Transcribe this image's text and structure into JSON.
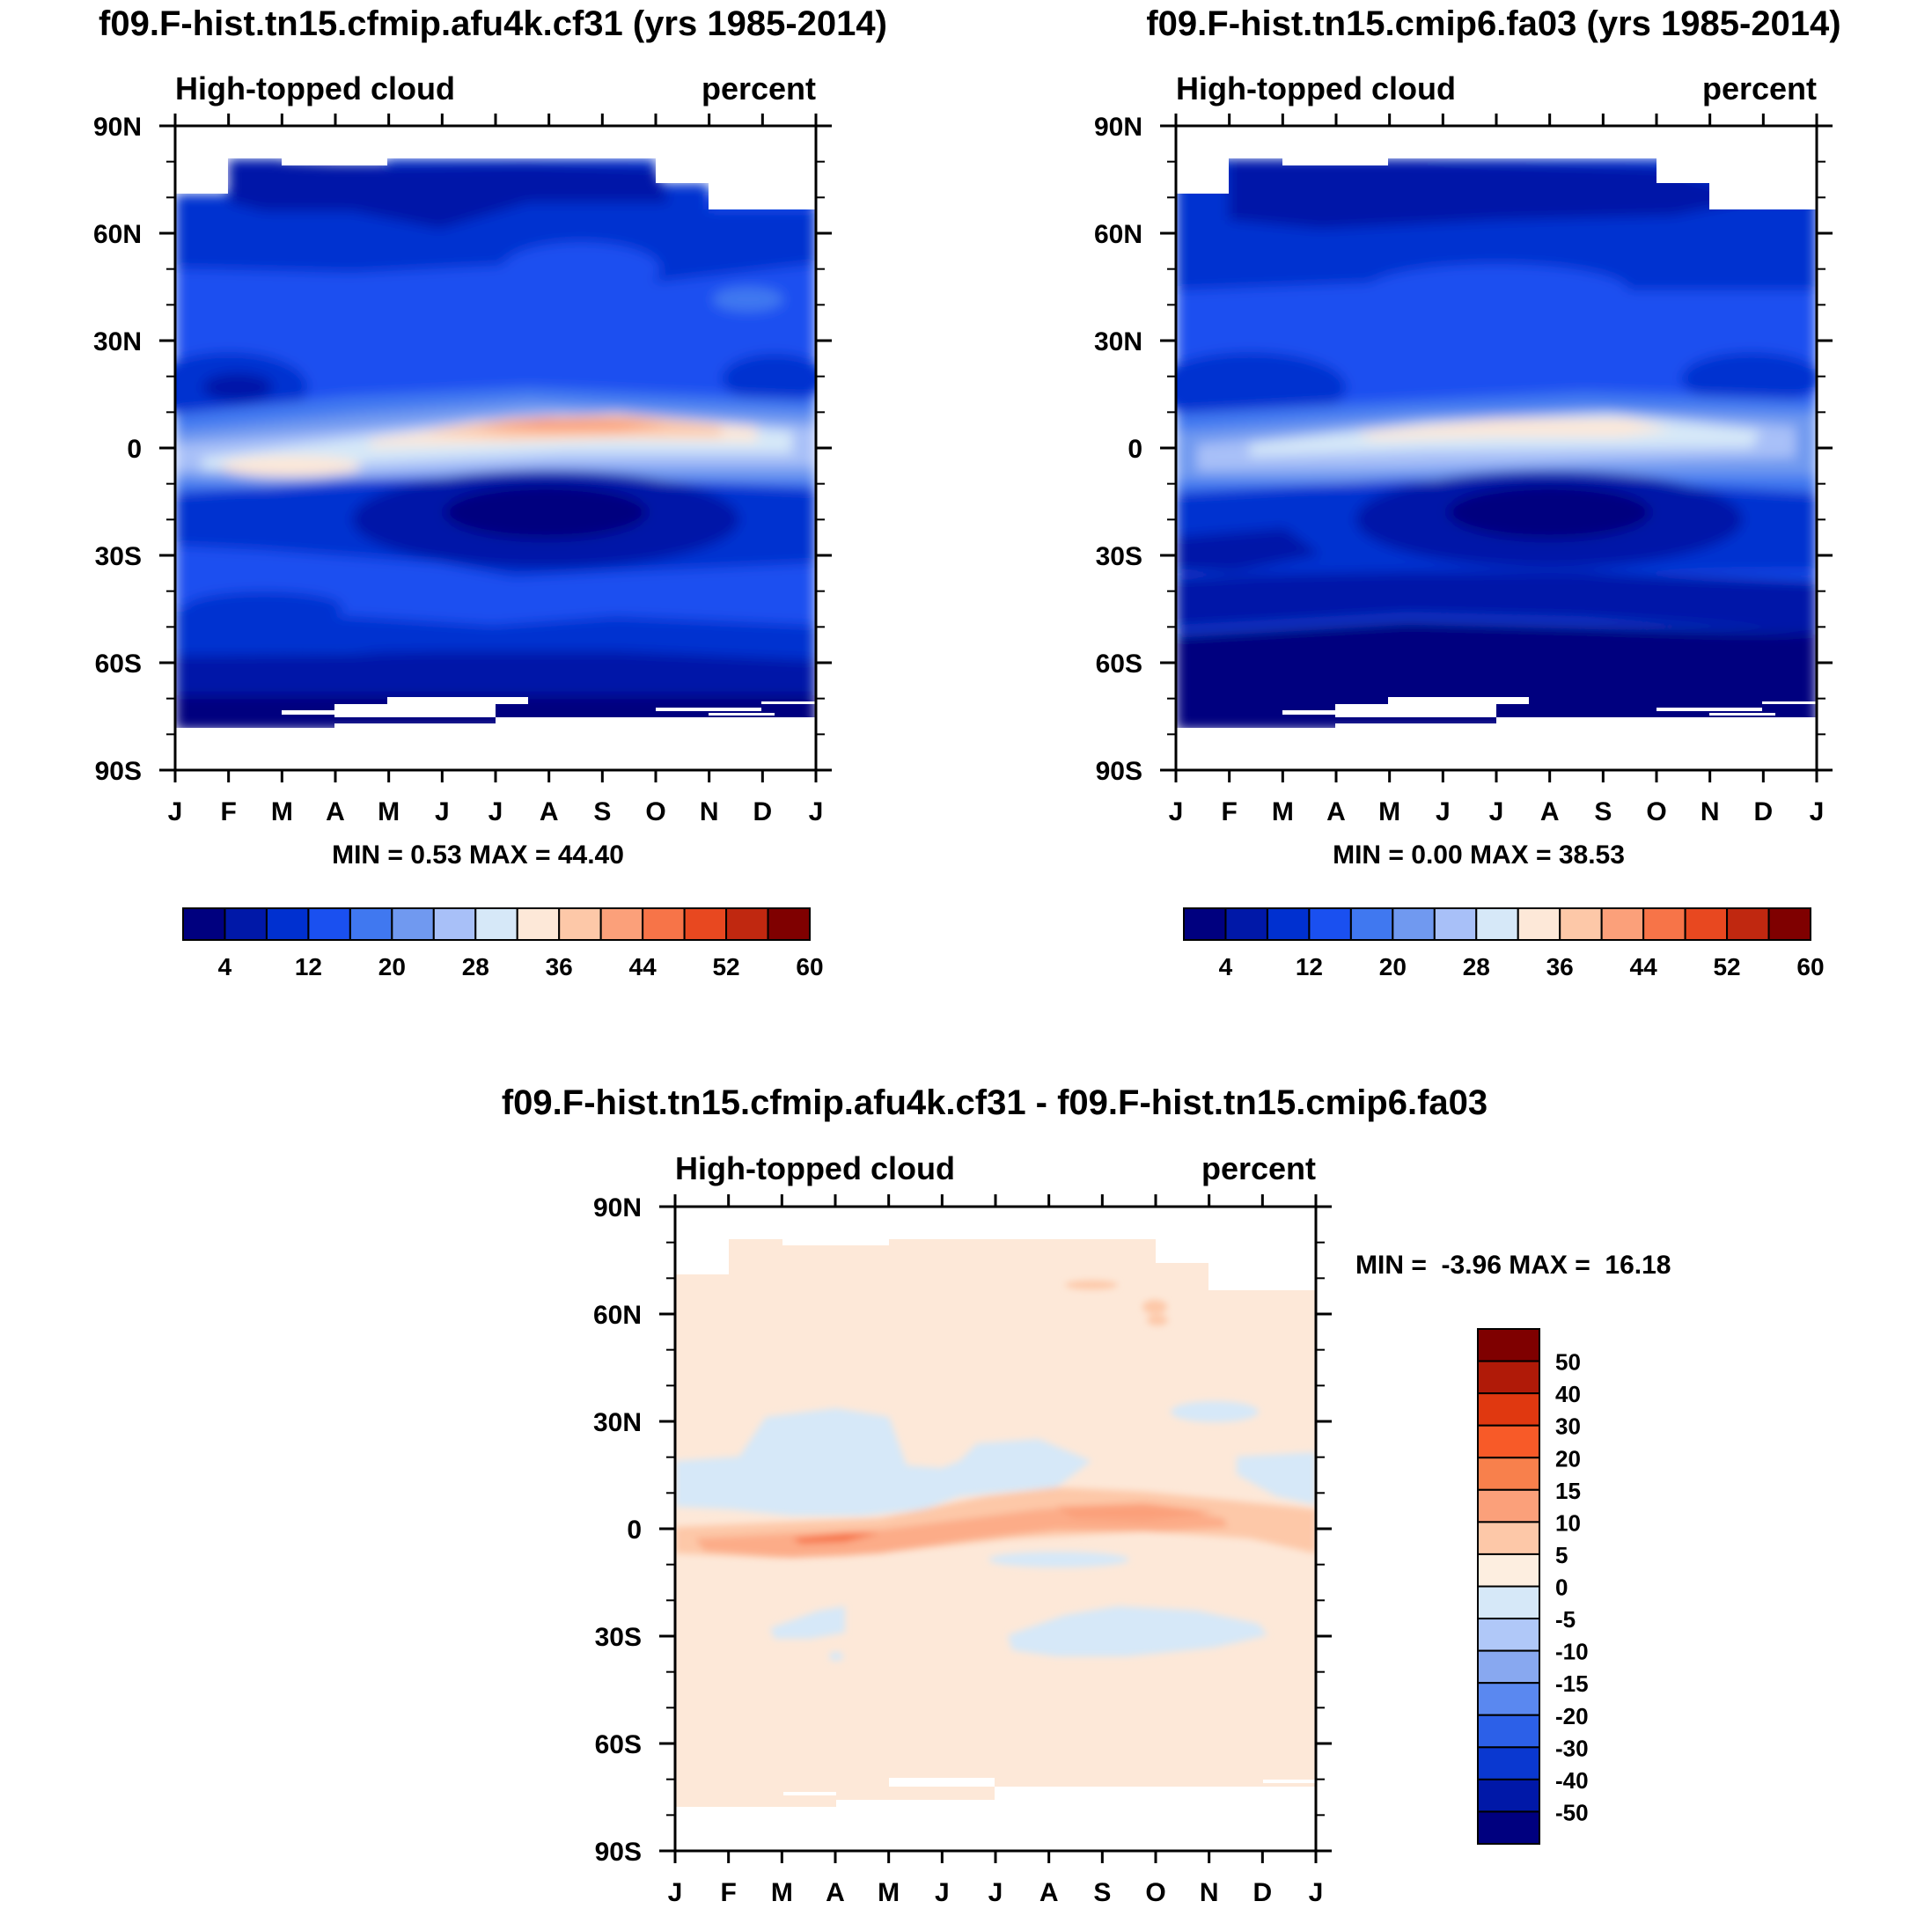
{
  "chart_data": [
    {
      "type": "heatmap",
      "title": "f09.F-hist.tn15.cfmip.afu4k.cf31 (yrs 1985-2014)",
      "left_subtitle": "High-topped cloud",
      "right_subtitle": "percent",
      "x_tick_labels": [
        "J",
        "F",
        "M",
        "A",
        "M",
        "J",
        "J",
        "A",
        "S",
        "O",
        "N",
        "D",
        "J"
      ],
      "y_tick_labels": [
        "90N",
        "60N",
        "30N",
        "0",
        "30S",
        "60S",
        "90S"
      ],
      "y_tick_values": [
        90,
        60,
        30,
        0,
        -30,
        -60,
        -90
      ],
      "ylim": [
        -90,
        90
      ],
      "xlim": [
        0,
        12
      ],
      "stats_text": "MIN =   0.53 MAX =  44.40",
      "min": 0.53,
      "max": 44.4,
      "colorbar": {
        "orientation": "horizontal",
        "colors": [
          "#00007f",
          "#0018a8",
          "#0030d0",
          "#1a50f0",
          "#4078f0",
          "#7099f0",
          "#a8c0f8",
          "#d6e8f8",
          "#fde8d8",
          "#fdc8a8",
          "#fba07a",
          "#f77448",
          "#e84820",
          "#c02810",
          "#7f0000"
        ],
        "labels": [
          "4",
          "12",
          "20",
          "28",
          "36",
          "44",
          "52",
          "60"
        ]
      }
    },
    {
      "type": "heatmap",
      "title": "f09.F-hist.tn15.cmip6.fa03 (yrs 1985-2014)",
      "left_subtitle": "High-topped cloud",
      "right_subtitle": "percent",
      "x_tick_labels": [
        "J",
        "F",
        "M",
        "A",
        "M",
        "J",
        "J",
        "A",
        "S",
        "O",
        "N",
        "D",
        "J"
      ],
      "y_tick_labels": [
        "90N",
        "60N",
        "30N",
        "0",
        "30S",
        "60S",
        "90S"
      ],
      "y_tick_values": [
        90,
        60,
        30,
        0,
        -30,
        -60,
        -90
      ],
      "ylim": [
        -90,
        90
      ],
      "xlim": [
        0,
        12
      ],
      "stats_text": "MIN =   0.00 MAX =  38.53",
      "min": 0.0,
      "max": 38.53,
      "colorbar": {
        "orientation": "horizontal",
        "colors": [
          "#00007f",
          "#0018a8",
          "#0030d0",
          "#1a50f0",
          "#4078f0",
          "#7099f0",
          "#a8c0f8",
          "#d6e8f8",
          "#fde8d8",
          "#fdc8a8",
          "#fba07a",
          "#f77448",
          "#e84820",
          "#c02810",
          "#7f0000"
        ],
        "labels": [
          "4",
          "12",
          "20",
          "28",
          "36",
          "44",
          "52",
          "60"
        ]
      }
    },
    {
      "type": "heatmap",
      "title": "f09.F-hist.tn15.cfmip.afu4k.cf31 - f09.F-hist.tn15.cmip6.fa03",
      "left_subtitle": "High-topped cloud",
      "right_subtitle": "percent",
      "x_tick_labels": [
        "J",
        "F",
        "M",
        "A",
        "M",
        "J",
        "J",
        "A",
        "S",
        "O",
        "N",
        "D",
        "J"
      ],
      "y_tick_labels": [
        "90N",
        "60N",
        "30N",
        "0",
        "30S",
        "60S",
        "90S"
      ],
      "y_tick_values": [
        90,
        60,
        30,
        0,
        -30,
        -60,
        -90
      ],
      "ylim": [
        -90,
        90
      ],
      "xlim": [
        0,
        12
      ],
      "stats_text": "MIN =  -3.96 MAX =  16.18",
      "min": -3.96,
      "max": 16.18,
      "colorbar": {
        "orientation": "vertical",
        "colors": [
          "#7f0000",
          "#b01a08",
          "#e03810",
          "#f85a28",
          "#f8804c",
          "#fba07a",
          "#fdc8a8",
          "#fdeee0",
          "#d6e8f8",
          "#b0c8f8",
          "#88a8f0",
          "#5a88f0",
          "#2c60e8",
          "#0a38d0",
          "#0018a8",
          "#00007f"
        ],
        "labels": [
          "50",
          "40",
          "30",
          "20",
          "15",
          "10",
          "5",
          "0",
          "-5",
          "-10",
          "-15",
          "-20",
          "-30",
          "-40",
          "-50"
        ]
      }
    }
  ]
}
